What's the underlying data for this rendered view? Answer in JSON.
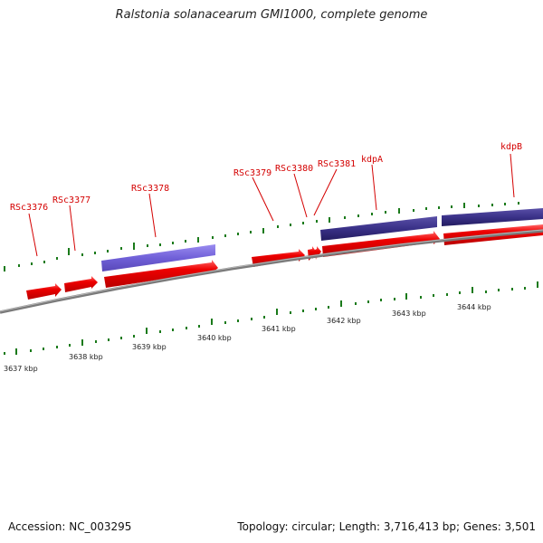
{
  "title": "Ralstonia solanacearum GMI1000, complete genome",
  "accession": "Accession: NC_003295",
  "topology": "Topology: circular; Length: 3,716,413 bp; Genes: 3,501",
  "gene_labels": [
    "RSc3376",
    "RSc3377",
    "RSc3378",
    "RSc3379",
    "RSc3380",
    "RSc3381",
    "kdpA",
    "kdpB"
  ],
  "kbp_labels": [
    "3637 kbp",
    "3638 kbp",
    "3639 kbp",
    "3640 kbp",
    "3641 kbp",
    "3642 kbp",
    "3643 kbp",
    "3644 kbp"
  ],
  "colors": {
    "gene": "#ee0000",
    "gene_highlight": "#ff5555",
    "protein_light": "#7a66dd",
    "protein_dark": "#3a3188",
    "tick": "#1a7a1a",
    "backbone": "#8a8a8a",
    "label": "#d40000"
  }
}
